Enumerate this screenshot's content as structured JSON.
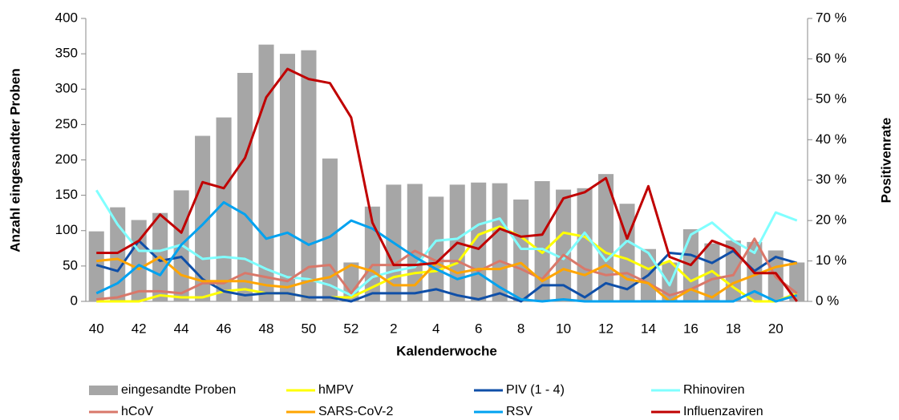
{
  "chart_data": {
    "type": "bar",
    "x_label": "Kalenderwoche",
    "y_label": "Anzahl eingesandter Proben",
    "y2_label": "Positivenrate",
    "categories": [
      "40",
      null,
      "42",
      null,
      "44",
      null,
      "46",
      null,
      "48",
      null,
      "50",
      null,
      "52",
      null,
      "2",
      null,
      "4",
      null,
      "6",
      null,
      "8",
      null,
      "10",
      null,
      "12",
      null,
      "14",
      null,
      "16",
      null,
      "18",
      null,
      "20",
      null
    ],
    "ylim": [
      0,
      400
    ],
    "yticks": [
      0,
      50,
      100,
      150,
      200,
      250,
      300,
      350,
      400
    ],
    "y2lim": [
      0,
      70
    ],
    "y2ticks": [
      {
        "value": 0,
        "label": "0 %"
      },
      {
        "value": 10,
        "label": "10 %"
      },
      {
        "value": 20,
        "label": "20 %"
      },
      {
        "value": 30,
        "label": "30 %"
      },
      {
        "value": 40,
        "label": "40 %"
      },
      {
        "value": 50,
        "label": "50 %"
      },
      {
        "value": 60,
        "label": "60 %"
      },
      {
        "value": 70,
        "label": "70 %"
      }
    ],
    "series": [
      {
        "name": "eingesandte Proben",
        "type": "bar",
        "color": "#a6a6a6",
        "values": [
          99,
          133,
          115,
          125,
          157,
          234,
          260,
          323,
          363,
          350,
          355,
          202,
          55,
          134,
          165,
          166,
          148,
          165,
          168,
          167,
          144,
          170,
          158,
          160,
          180,
          138,
          74,
          55,
          102,
          82,
          86,
          84,
          72,
          55
        ]
      },
      {
        "name": "hMPV",
        "type": "line",
        "axis": "y2",
        "color": "#ffff00",
        "values": [
          0,
          0,
          0,
          1.5,
          1,
          1,
          2.5,
          3,
          2,
          2,
          1,
          1,
          1,
          3.5,
          6,
          7,
          7.5,
          9.5,
          16.5,
          18.5,
          16,
          12,
          17,
          16,
          12,
          10.5,
          8,
          10,
          5,
          7.5,
          3.5,
          0,
          0,
          2
        ]
      },
      {
        "name": "PIV (1 - 4)",
        "type": "line",
        "axis": "y2",
        "color": "#0f4fa8",
        "values": [
          9,
          7.5,
          15,
          10,
          11,
          5.5,
          2.5,
          1.5,
          2,
          2,
          1,
          1,
          0,
          2,
          2,
          2,
          3,
          1.5,
          0.5,
          2,
          0,
          4,
          4,
          1,
          4.5,
          3,
          6.5,
          12,
          11.5,
          9.5,
          12.5,
          7.5,
          11,
          9.5
        ]
      },
      {
        "name": "Rhinoviren",
        "type": "line",
        "axis": "y2",
        "color": "#80ffff",
        "values": [
          27.5,
          19,
          12.5,
          12.5,
          14,
          10.5,
          11,
          10.5,
          8,
          6,
          5.5,
          4,
          1.5,
          6,
          7.5,
          8.5,
          15,
          15.5,
          19,
          20.5,
          13,
          13,
          10.5,
          17,
          10,
          15,
          12,
          4,
          16.5,
          19.5,
          15,
          12,
          22,
          20
        ]
      },
      {
        "name": "hCoV",
        "type": "line",
        "axis": "y2",
        "color": "#d9786a",
        "values": [
          0.5,
          1,
          2.5,
          2.5,
          2,
          4.5,
          4.5,
          7,
          6,
          5,
          8.5,
          9,
          2,
          9,
          9,
          12.5,
          10,
          10,
          7.5,
          10,
          8,
          5.5,
          11.5,
          8,
          6.5,
          7,
          4.5,
          1.5,
          3,
          5.5,
          6.5,
          15.5,
          6,
          2
        ]
      },
      {
        "name": "SARS-CoV-2",
        "type": "line",
        "axis": "y2",
        "color": "#ffa500",
        "values": [
          10,
          10.5,
          8,
          11,
          6.5,
          5,
          5,
          5,
          4,
          3.5,
          5,
          6,
          9,
          7.5,
          4,
          4,
          9.5,
          7,
          8,
          8,
          9.5,
          5,
          8,
          6.5,
          9,
          5.5,
          4.5,
          0,
          3,
          1,
          4.5,
          6.5,
          8.5,
          9.5
        ]
      },
      {
        "name": "RSV",
        "type": "line",
        "axis": "y2",
        "color": "#00a2f0",
        "values": [
          2,
          4.5,
          9,
          6.5,
          14,
          19,
          24.5,
          21.5,
          15.5,
          17,
          14,
          16,
          20,
          18,
          14.5,
          11,
          8,
          5.5,
          7,
          3.5,
          0.5,
          0,
          0.5,
          0,
          0,
          0,
          0,
          0,
          0,
          0,
          0,
          2.5,
          0,
          1.5
        ]
      },
      {
        "name": "Influenzaviren",
        "type": "line",
        "axis": "y2",
        "color": "#c00000",
        "values": [
          12,
          12,
          15,
          21.5,
          17,
          29.5,
          28,
          35.5,
          50.5,
          57.5,
          55,
          54,
          45.5,
          19.5,
          9,
          9,
          9.5,
          14.5,
          13,
          18,
          16,
          16.5,
          25.5,
          27,
          30.5,
          15.5,
          28.5,
          11,
          9,
          15,
          13,
          7,
          7,
          0
        ]
      }
    ]
  }
}
